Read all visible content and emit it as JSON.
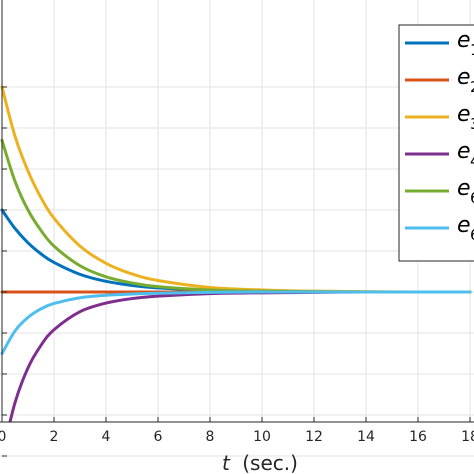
{
  "chart_data": {
    "type": "line",
    "xlabel_var": "t",
    "xlabel_unit": "(sec.)",
    "xlim": [
      0,
      18
    ],
    "ylim": [
      -4.3,
      5.7
    ],
    "grid": true,
    "x_ticks": [
      0,
      2,
      4,
      6,
      8,
      10,
      12,
      14,
      16,
      18
    ],
    "x_tick_labels": [
      "0",
      "2",
      "4",
      "6",
      "8",
      "10",
      "12",
      "14",
      "16",
      "18"
    ],
    "y_ticks": [
      -4,
      -3,
      -2,
      -1,
      0,
      1,
      2,
      3,
      4,
      5
    ],
    "legend_placement": "top-right",
    "series": [
      {
        "name": "e",
        "subscript": "1",
        "color": "#0072BD",
        "x": [
          0,
          0.5,
          1,
          1.5,
          2,
          3,
          4,
          5,
          6,
          8,
          10,
          12,
          14,
          16,
          18
        ],
        "y": [
          2.0,
          1.55,
          1.2,
          0.93,
          0.72,
          0.43,
          0.26,
          0.16,
          0.1,
          0.04,
          0.02,
          0.01,
          0.0,
          0.0,
          0.0
        ]
      },
      {
        "name": "e",
        "subscript": "2",
        "color": "#D95319",
        "x": [
          0,
          0.5,
          1,
          1.5,
          2,
          3,
          4,
          5,
          6,
          8,
          10,
          12,
          14,
          16,
          18
        ],
        "y": [
          0.0,
          0.0,
          0.0,
          0.0,
          0.0,
          0.0,
          0.0,
          0.0,
          0.0,
          0.0,
          0.0,
          0.0,
          0.0,
          0.0,
          0.0
        ]
      },
      {
        "name": "e",
        "subscript": "3",
        "color": "#EDB120",
        "x": [
          0,
          0.5,
          1,
          1.5,
          2,
          3,
          4,
          5,
          6,
          8,
          10,
          12,
          14,
          16,
          18
        ],
        "y": [
          5.0,
          3.8,
          2.95,
          2.3,
          1.8,
          1.12,
          0.7,
          0.44,
          0.28,
          0.11,
          0.05,
          0.02,
          0.01,
          0.0,
          0.0
        ]
      },
      {
        "name": "e",
        "subscript": "4",
        "color": "#7E2F8E",
        "x": [
          0,
          0.5,
          1,
          1.5,
          2,
          3,
          4,
          5,
          6,
          8,
          10,
          12,
          14,
          16,
          18
        ],
        "y": [
          -4.0,
          -2.7,
          -1.85,
          -1.3,
          -0.92,
          -0.48,
          -0.27,
          -0.16,
          -0.1,
          -0.04,
          -0.02,
          -0.01,
          0.0,
          0.0,
          0.0
        ]
      },
      {
        "name": "e",
        "subscript": "6",
        "color": "#77AC30",
        "x": [
          0,
          0.5,
          1,
          1.5,
          2,
          3,
          4,
          5,
          6,
          8,
          10,
          12,
          14,
          16,
          18
        ],
        "y": [
          3.7,
          2.7,
          2.0,
          1.5,
          1.12,
          0.64,
          0.37,
          0.22,
          0.13,
          0.05,
          0.02,
          0.01,
          0.0,
          0.0,
          0.0
        ]
      },
      {
        "name": "e",
        "subscript": "6",
        "color": "#4DBEEE",
        "x": [
          0,
          0.5,
          1,
          1.5,
          2,
          3,
          4,
          5,
          6,
          8,
          10,
          12,
          14,
          16,
          18
        ],
        "y": [
          -1.5,
          -0.95,
          -0.62,
          -0.41,
          -0.28,
          -0.14,
          -0.08,
          -0.05,
          -0.03,
          -0.01,
          0.0,
          0.0,
          0.0,
          0.0,
          0.0
        ]
      }
    ]
  }
}
